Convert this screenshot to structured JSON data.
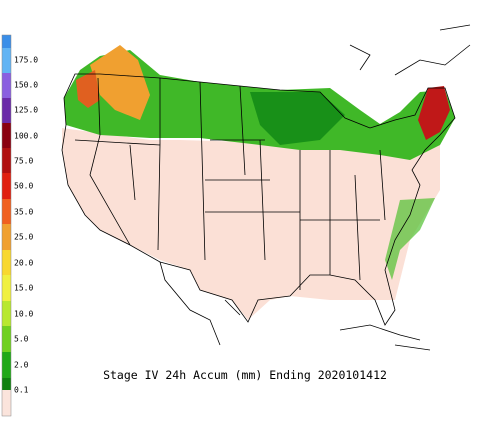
{
  "title": "Stage IV 24h Accum (mm) Ending 2020101412",
  "colorbar": {
    "labels": [
      "175.0",
      "150.0",
      "125.0",
      "100.0",
      "75.0",
      "50.0",
      "35.0",
      "25.0",
      "20.0",
      "15.0",
      "10.0",
      "5.0",
      "2.0",
      "0.1"
    ]
  }
}
